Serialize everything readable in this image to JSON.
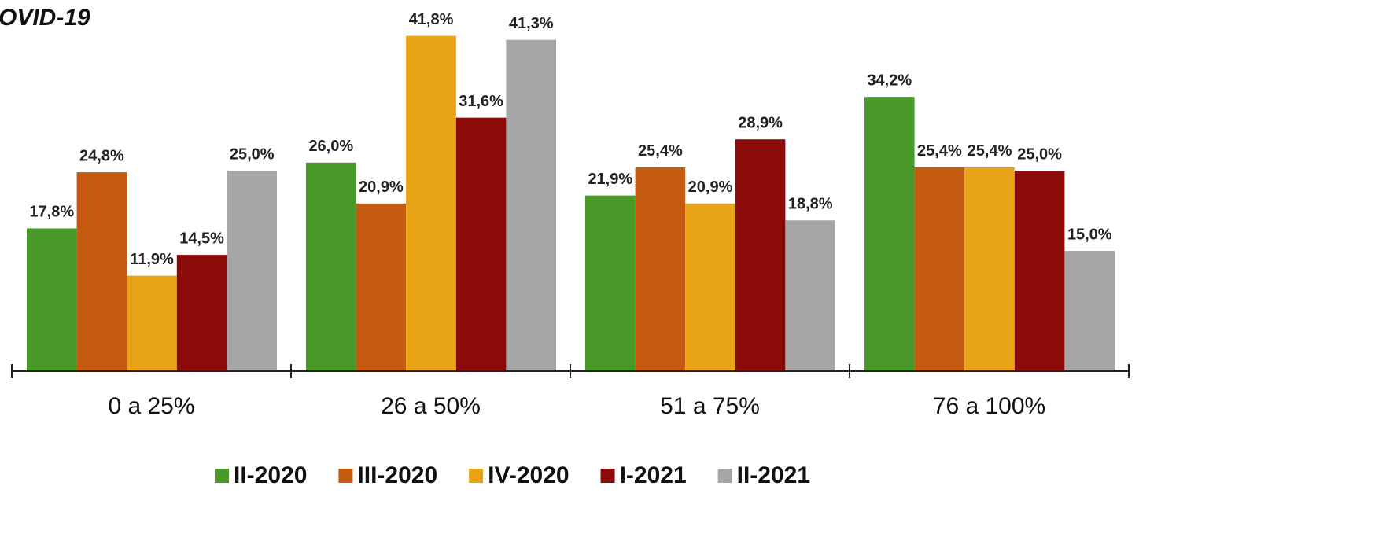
{
  "chart_data": {
    "type": "bar",
    "title": "OVID-19",
    "categories": [
      "0 a 25%",
      "26 a 50%",
      "51 a 75%",
      "76 a 100%"
    ],
    "ylim": [
      0,
      45
    ],
    "series": [
      {
        "name": "II-2020",
        "color": "#4a9a2a",
        "values": [
          17.8,
          26.0,
          21.9,
          34.2
        ],
        "value_labels": [
          "17,8%",
          "26,0%",
          "21,9%",
          "34,2%"
        ]
      },
      {
        "name": "III-2020",
        "color": "#c55a11",
        "values": [
          24.8,
          20.9,
          25.4,
          25.4
        ],
        "value_labels": [
          "24,8%",
          "20,9%",
          "25,4%",
          "25,4%"
        ]
      },
      {
        "name": "IV-2020",
        "color": "#e8a317",
        "values": [
          11.9,
          41.8,
          20.9,
          25.4
        ],
        "value_labels": [
          "11,9%",
          "41,8%",
          "20,9%",
          "25,4%"
        ]
      },
      {
        "name": "I-2021",
        "color": "#8b0a0a",
        "values": [
          14.5,
          31.6,
          28.9,
          25.0
        ],
        "value_labels": [
          "14,5%",
          "31,6%",
          "28,9%",
          "25,0%"
        ]
      },
      {
        "name": "II-2021",
        "color": "#a6a6a6",
        "values": [
          25.0,
          41.3,
          18.8,
          15.0
        ],
        "value_labels": [
          "25,0%",
          "41,3%",
          "18,8%",
          "15,0%"
        ]
      }
    ]
  }
}
